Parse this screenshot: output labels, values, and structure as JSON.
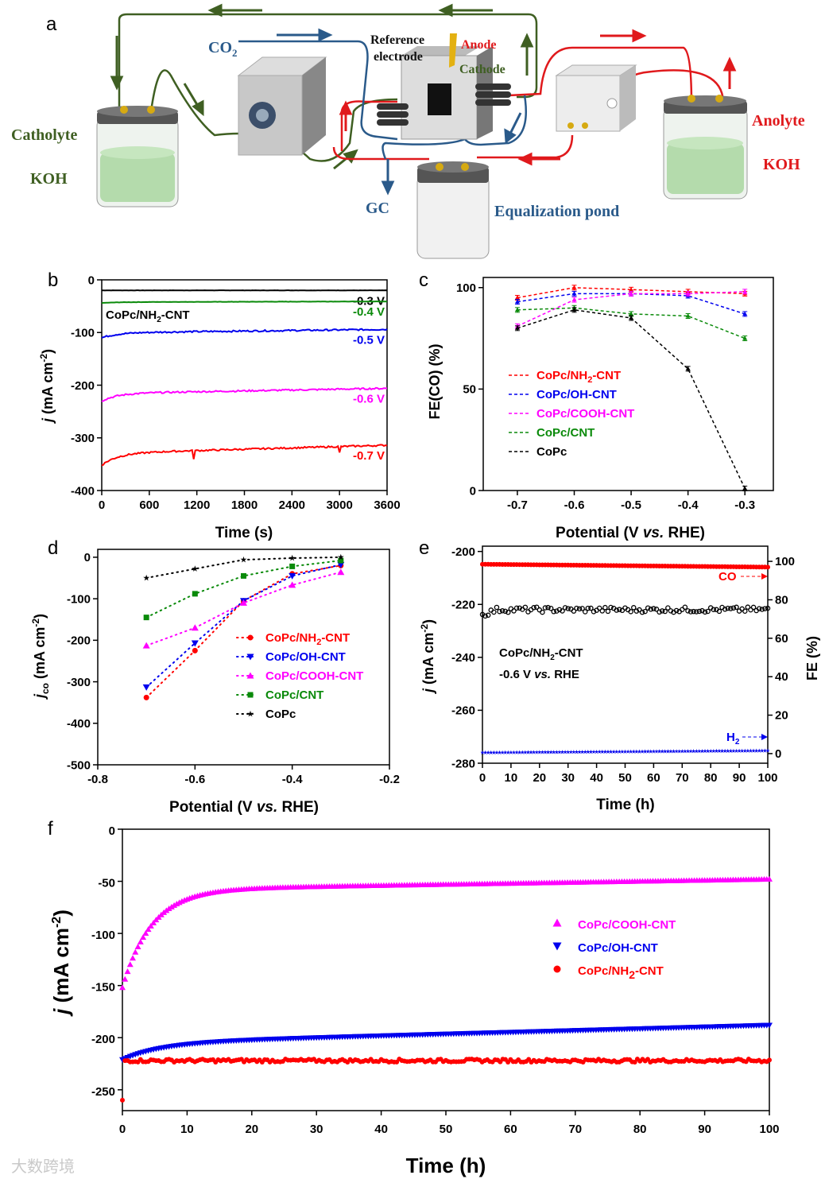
{
  "panels": {
    "a": "a",
    "b": "b",
    "c": "c",
    "d": "d",
    "e": "e",
    "f": "f"
  },
  "diagram": {
    "co2": "CO",
    "co2_sub": "2",
    "reference": "Reference",
    "electrode": "electrode",
    "anode": "Anode",
    "cathode": "Cathode",
    "catholyte": "Catholyte",
    "catholyte_koh": "KOH",
    "anolyte": "Anolyte",
    "anolyte_koh": "KOH",
    "gc": "GC",
    "equalization": "Equalization pond",
    "colors": {
      "catholyte_line": "#3f5f22",
      "anolyte_line": "#e0191c",
      "gas_line": "#2a5a8a"
    }
  },
  "watermark": "大数跨境",
  "chart_data": [
    {
      "id": "b",
      "type": "line",
      "xlabel": "Time (s)",
      "ylabel_j": "j",
      "ylabel_rest": " (mA cm",
      "ylabel_sup": "-2",
      "ylabel_end": ")",
      "xlim": [
        0,
        3600
      ],
      "ylim": [
        -400,
        0
      ],
      "xticks": [
        0,
        600,
        1200,
        1800,
        2400,
        3000,
        3600
      ],
      "yticks": [
        0,
        -100,
        -200,
        -300,
        -400
      ],
      "annotation": "CoPc/NH",
      "annotation_sub": "2",
      "annotation_end": "-CNT",
      "series": [
        {
          "name": "-0.3 V",
          "color": "#000000",
          "start": -20,
          "end": -20
        },
        {
          "name": "-0.4 V",
          "color": "#0a8a0a",
          "start": -44,
          "end": -41
        },
        {
          "name": "-0.5 V",
          "color": "#0000ee",
          "start": -110,
          "end": -94
        },
        {
          "name": "-0.6 V",
          "color": "#ff00ff",
          "start": -230,
          "end": -206
        },
        {
          "name": "-0.7 V",
          "color": "#ff0000",
          "start": -352,
          "end": -314
        }
      ]
    },
    {
      "id": "c",
      "type": "line",
      "xlabel_pre": "Potential (V ",
      "xlabel_it": "vs.",
      "xlabel_post": " RHE)",
      "ylabel": "FE(CO) (%)",
      "xlim": [
        -0.76,
        -0.25
      ],
      "ylim": [
        0,
        100
      ],
      "xticks": [
        -0.7,
        -0.6,
        -0.5,
        -0.4,
        -0.3
      ],
      "yticks": [
        0,
        50,
        100
      ],
      "legend": "center-left",
      "x": [
        -0.7,
        -0.6,
        -0.5,
        -0.4,
        -0.3
      ],
      "series": [
        {
          "name": "CoPc/NH",
          "sub": "2",
          "suffix": "-CNT",
          "color": "#ff0000",
          "values": [
            95,
            100,
            99,
            98,
            97
          ]
        },
        {
          "name": "CoPc/OH-CNT",
          "sub": "",
          "suffix": "",
          "color": "#0000ee",
          "values": [
            93,
            97,
            97,
            96,
            87
          ]
        },
        {
          "name": "CoPc/COOH-CNT",
          "sub": "",
          "suffix": "",
          "color": "#ff00ff",
          "values": [
            81,
            94,
            97,
            97,
            98
          ]
        },
        {
          "name": "CoPc/CNT",
          "sub": "",
          "suffix": "",
          "color": "#0a8a0a",
          "values": [
            89,
            90,
            87,
            86,
            75
          ]
        },
        {
          "name": "CoPc",
          "sub": "",
          "suffix": "",
          "color": "#000000",
          "values": [
            80,
            89,
            85,
            60,
            1
          ]
        }
      ]
    },
    {
      "id": "d",
      "type": "scatter",
      "xlabel_pre": "Potential (V ",
      "xlabel_it": "vs.",
      "xlabel_post": " RHE)",
      "ylabel_j": "j",
      "ylabel_sub": "co",
      "ylabel_rest": " (mA cm",
      "ylabel_sup": "-2",
      "ylabel_end": ")",
      "xlim": [
        -0.8,
        -0.2
      ],
      "ylim": [
        -500,
        0
      ],
      "xticks": [
        -0.8,
        -0.6,
        -0.4,
        -0.2
      ],
      "yticks": [
        0,
        -100,
        -200,
        -300,
        -400,
        -500
      ],
      "legend": "center-right",
      "x": [
        -0.7,
        -0.6,
        -0.5,
        -0.4,
        -0.3
      ],
      "series": [
        {
          "name": "CoPc/NH",
          "sub": "2",
          "suffix": "-CNT",
          "color": "#ff0000",
          "marker": "circle",
          "values": [
            -338,
            -225,
            -105,
            -40,
            -20
          ]
        },
        {
          "name": "CoPc/OH-CNT",
          "sub": "",
          "suffix": "",
          "color": "#0000ee",
          "marker": "triangle-down",
          "values": [
            -313,
            -207,
            -105,
            -45,
            -18
          ]
        },
        {
          "name": "CoPc/COOH-CNT",
          "sub": "",
          "suffix": "",
          "color": "#ff00ff",
          "marker": "triangle-up",
          "values": [
            -213,
            -170,
            -110,
            -67,
            -36
          ]
        },
        {
          "name": "CoPc/CNT",
          "sub": "",
          "suffix": "",
          "color": "#0a8a0a",
          "marker": "square",
          "values": [
            -145,
            -88,
            -45,
            -22,
            -8
          ]
        },
        {
          "name": "CoPc",
          "sub": "",
          "suffix": "",
          "color": "#000000",
          "marker": "star",
          "values": [
            -50,
            -28,
            -6,
            -2,
            0
          ]
        }
      ]
    },
    {
      "id": "e",
      "type": "scatter",
      "xlabel": "Time (h)",
      "ylabel_j": "j",
      "ylabel_rest": " (mA cm",
      "ylabel_sup": "-2",
      "ylabel_end": ")",
      "y2label": "FE (%)",
      "xlim": [
        0,
        100
      ],
      "ylim": [
        -280,
        -200
      ],
      "y2lim": [
        0,
        100
      ],
      "xticks": [
        0,
        10,
        20,
        30,
        40,
        50,
        60,
        70,
        80,
        90,
        100
      ],
      "yticks": [
        -200,
        -220,
        -240,
        -260,
        -280
      ],
      "y2ticks": [
        0,
        20,
        40,
        60,
        80,
        100
      ],
      "annotation_line1_pre": "CoPc/NH",
      "annotation_line1_sub": "2",
      "annotation_line1_post": "-CNT",
      "annotation_line2_pre": "-0.6 V ",
      "annotation_line2_it": "vs.",
      "annotation_line2_post": " RHE",
      "co_label": "CO",
      "h2_label": "H",
      "h2_sub": "2",
      "series": [
        {
          "name": "CO FE",
          "axis": "right",
          "color": "#ff0000",
          "marker": "circle",
          "value": 98.5,
          "end": 97
        },
        {
          "name": "j",
          "axis": "left",
          "color": "#000000",
          "marker": "circle-open",
          "value": -222
        },
        {
          "name": "H2 FE",
          "axis": "right",
          "color": "#0000ee",
          "marker": "star",
          "value": 0.5,
          "end": 1.5
        }
      ]
    },
    {
      "id": "f",
      "type": "scatter",
      "xlabel": "Time (h)",
      "ylabel_j": "j",
      "ylabel_rest": " (mA cm",
      "ylabel_sup": "-2",
      "ylabel_end": ")",
      "xlim": [
        0,
        100
      ],
      "ylim": [
        -270,
        0
      ],
      "xticks": [
        0,
        10,
        20,
        30,
        40,
        50,
        60,
        70,
        80,
        90,
        100
      ],
      "yticks": [
        0,
        -50,
        -100,
        -150,
        -200,
        -250
      ],
      "legend": "center-right",
      "series": [
        {
          "name": "CoPc/COOH-CNT",
          "sub": "",
          "suffix": "",
          "color": "#ff00ff",
          "marker": "triangle-up",
          "start": -152,
          "end": -48,
          "plateau": -58,
          "tau": 4.5
        },
        {
          "name": "CoPc/OH-CNT",
          "sub": "",
          "suffix": "",
          "color": "#0000ee",
          "marker": "triangle-down",
          "start": -221,
          "end": -188,
          "plateau": -205,
          "tau": 6
        },
        {
          "name": "CoPc/NH",
          "sub": "2",
          "suffix": "-CNT",
          "color": "#ff0000",
          "marker": "circle",
          "start": -260,
          "end": -222,
          "plateau": -222,
          "tau": 0.3
        }
      ]
    }
  ]
}
